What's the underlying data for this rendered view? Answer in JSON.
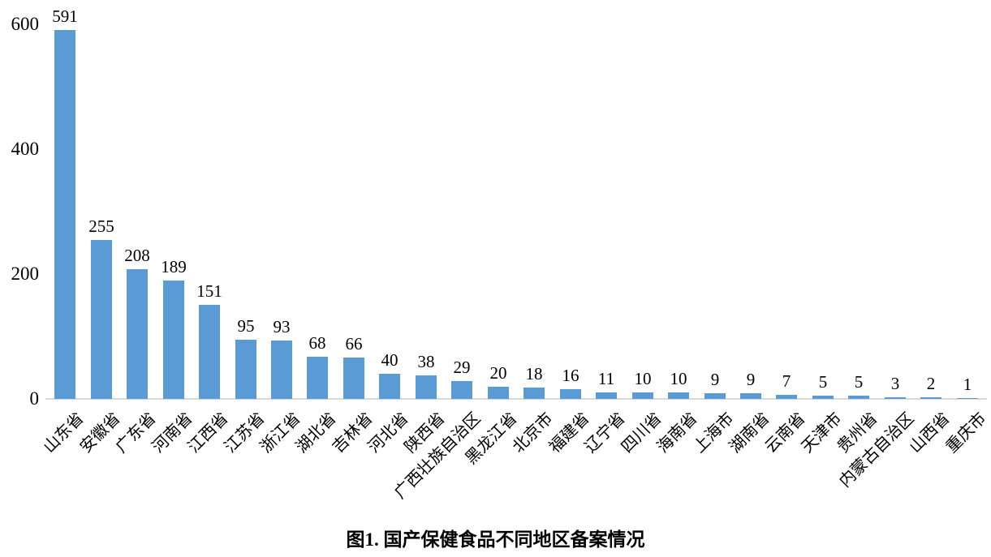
{
  "chart_data": {
    "type": "bar",
    "title": "图1. 国产保健食品不同地区备案情况",
    "xlabel": "",
    "ylabel": "",
    "categories": [
      "山东省",
      "安徽省",
      "广东省",
      "河南省",
      "江西省",
      "江苏省",
      "浙江省",
      "湖北省",
      "吉林省",
      "河北省",
      "陕西省",
      "广西壮族自治区",
      "黑龙江省",
      "北京市",
      "福建省",
      "辽宁省",
      "四川省",
      "海南省",
      "上海市",
      "湖南省",
      "云南省",
      "天津市",
      "贵州省",
      "内蒙古自治区",
      "山西省",
      "重庆市"
    ],
    "values": [
      591,
      255,
      208,
      189,
      151,
      95,
      93,
      68,
      66,
      40,
      38,
      29,
      20,
      18,
      16,
      11,
      10,
      10,
      9,
      9,
      7,
      5,
      5,
      3,
      2,
      1
    ],
    "ylim": [
      0,
      600
    ],
    "yticks": [
      0,
      200,
      400,
      600
    ],
    "grid": false,
    "legend": false,
    "value_labels_shown": true,
    "category_label_rotation_deg": 45,
    "colors": {
      "bar": "#5b9bd5",
      "axis_line": "#d9d9d9",
      "text": "#000000",
      "background": "#ffffff"
    }
  }
}
